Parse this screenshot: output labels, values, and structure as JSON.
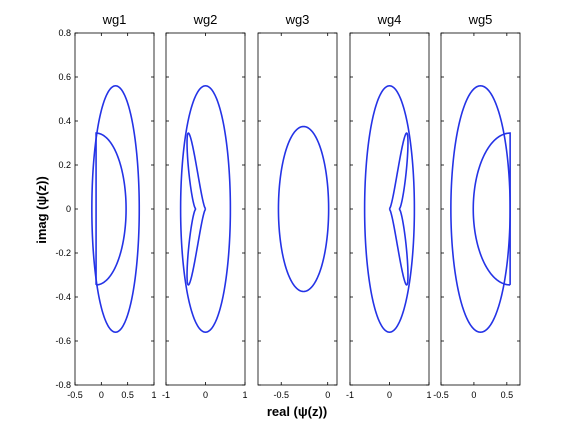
{
  "chart_data": {
    "type": "line",
    "xlabel": "real (ψ(z))",
    "ylabel": "imag (ψ(z))",
    "ylim": [
      -0.8,
      0.8
    ],
    "yticks": [
      "0.8",
      "0.6",
      "0.4",
      "0.2",
      "0",
      "-0.2",
      "-0.4",
      "-0.6",
      "-0.8"
    ],
    "yticks_values": [
      0.8,
      0.6,
      0.4,
      0.2,
      0,
      -0.2,
      -0.4,
      -0.6,
      -0.8
    ],
    "grid": false,
    "line_color": "#2433e6",
    "panels": [
      {
        "title": "wg1",
        "xlim": [
          -0.5,
          1
        ],
        "xticks": [
          -0.5,
          0,
          0.5,
          1
        ],
        "xtick_labels": [
          "-0.5",
          "0",
          "0.5",
          "1"
        ],
        "curves": [
          {
            "kind": "ellipse",
            "cx": 0.27,
            "cy": 0,
            "rx": 0.45,
            "ry": 0.56
          },
          {
            "kind": "dshape",
            "cx": -0.1,
            "cy": 0,
            "xmax": 0.47,
            "ry": 0.345,
            "direction": "right"
          }
        ]
      },
      {
        "title": "wg2",
        "xlim": [
          -1,
          1
        ],
        "xticks": [
          -1,
          0,
          1
        ],
        "xtick_labels": [
          "-1",
          "0",
          "1"
        ],
        "curves": [
          {
            "kind": "ellipse",
            "cx": 0,
            "cy": 0,
            "rx": 0.63,
            "ry": 0.56
          },
          {
            "kind": "heart",
            "cusp": 0,
            "xmin": -0.56,
            "ry": 0.345,
            "direction": "left"
          }
        ]
      },
      {
        "title": "wg3",
        "xlim": [
          -0.75,
          0.1
        ],
        "xticks": [
          -0.5,
          0
        ],
        "xtick_labels": [
          "-0.5",
          "0"
        ],
        "curves": [
          {
            "kind": "ellipse",
            "cx": -0.26,
            "cy": 0,
            "rx": 0.27,
            "ry": 0.375
          }
        ]
      },
      {
        "title": "wg4",
        "xlim": [
          -1,
          1
        ],
        "xticks": [
          -1,
          0,
          1
        ],
        "xtick_labels": [
          "-1",
          "0",
          "1"
        ],
        "curves": [
          {
            "kind": "ellipse",
            "cx": 0,
            "cy": 0,
            "rx": 0.63,
            "ry": 0.56
          },
          {
            "kind": "heart",
            "cusp": 0,
            "xmax": 0.56,
            "ry": 0.345,
            "direction": "right"
          }
        ]
      },
      {
        "title": "wg5",
        "xlim": [
          -0.5,
          0.7
        ],
        "xticks": [
          -0.5,
          0,
          0.5
        ],
        "xtick_labels": [
          "-0.5",
          "0",
          "0.5"
        ],
        "curves": [
          {
            "kind": "ellipse",
            "cx": 0.1,
            "cy": 0,
            "rx": 0.45,
            "ry": 0.56
          },
          {
            "kind": "dshape",
            "cx": 0.55,
            "cy": 0,
            "xmax": -0.01,
            "ry": 0.345,
            "direction": "left"
          }
        ]
      }
    ]
  }
}
